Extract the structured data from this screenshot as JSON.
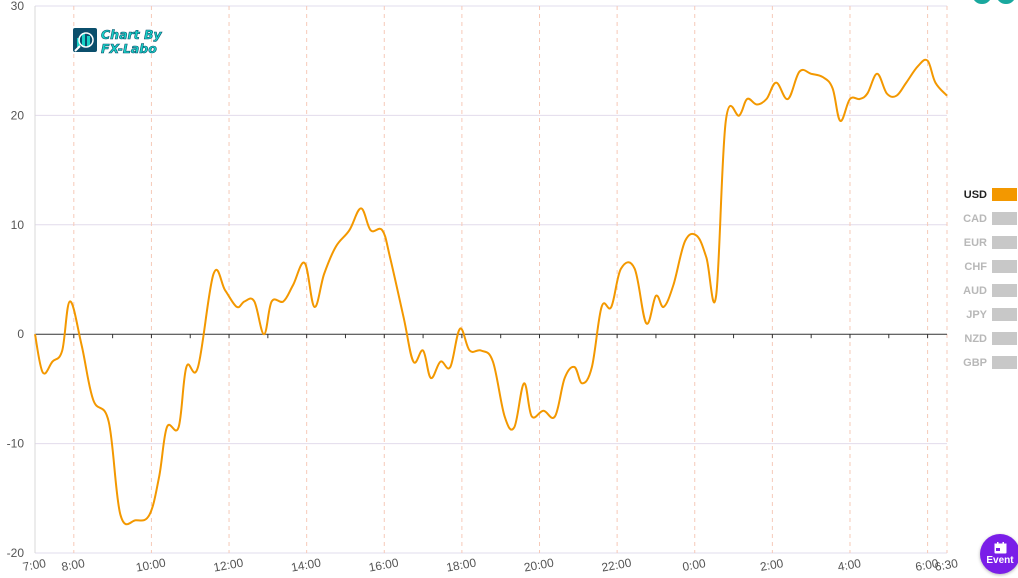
{
  "logo": {
    "line1": "Chart By",
    "line2": "FX-Labo",
    "icon": "chart-logo-icon"
  },
  "event_button": {
    "label": "Event",
    "icon": "calendar-icon",
    "color": "#7a1ee8"
  },
  "colors": {
    "series": "#f39800",
    "inactive": "#c8c8c8",
    "grid": "#e2dcec",
    "vgrid": "#f6c9b8",
    "zero_axis": "#333333"
  },
  "chart_data": {
    "type": "line",
    "title": "",
    "xlabel": "",
    "ylabel": "",
    "ylim": [
      -20,
      30
    ],
    "yticks": [
      -20,
      -10,
      0,
      10,
      20,
      30
    ],
    "xticks": [
      "7:00",
      "8:00",
      "10:00",
      "12:00",
      "14:00",
      "16:00",
      "18:00",
      "20:00",
      "22:00",
      "0:00",
      "2:00",
      "4:00",
      "6:00",
      "6:30"
    ],
    "x_hours": [
      0,
      1,
      3,
      5,
      7,
      9,
      11,
      13,
      15,
      17,
      19,
      21,
      23,
      23.5
    ],
    "grid": true,
    "legend_position": "right",
    "legend": [
      {
        "label": "USD",
        "active": true
      },
      {
        "label": "CAD",
        "active": false
      },
      {
        "label": "EUR",
        "active": false
      },
      {
        "label": "CHF",
        "active": false
      },
      {
        "label": "AUD",
        "active": false
      },
      {
        "label": "JPY",
        "active": false
      },
      {
        "label": "NZD",
        "active": false
      },
      {
        "label": "GBP",
        "active": false
      }
    ],
    "series": [
      {
        "name": "USD",
        "points": [
          [
            0.0,
            0.0
          ],
          [
            0.2,
            -3.5
          ],
          [
            0.45,
            -2.5
          ],
          [
            0.7,
            -1.5
          ],
          [
            0.9,
            3.0
          ],
          [
            1.2,
            -1.0
          ],
          [
            1.5,
            -6.0
          ],
          [
            1.9,
            -8.0
          ],
          [
            2.2,
            -16.5
          ],
          [
            2.6,
            -17.0
          ],
          [
            2.95,
            -16.5
          ],
          [
            3.2,
            -13.0
          ],
          [
            3.4,
            -8.5
          ],
          [
            3.7,
            -8.5
          ],
          [
            3.9,
            -3.0
          ],
          [
            4.2,
            -3.0
          ],
          [
            4.6,
            5.5
          ],
          [
            4.9,
            4.0
          ],
          [
            5.2,
            2.5
          ],
          [
            5.4,
            3.0
          ],
          [
            5.65,
            3.0
          ],
          [
            5.9,
            0.0
          ],
          [
            6.1,
            3.0
          ],
          [
            6.4,
            3.0
          ],
          [
            6.65,
            4.5
          ],
          [
            6.95,
            6.5
          ],
          [
            7.2,
            2.5
          ],
          [
            7.45,
            5.5
          ],
          [
            7.75,
            8.0
          ],
          [
            8.1,
            9.5
          ],
          [
            8.4,
            11.5
          ],
          [
            8.65,
            9.5
          ],
          [
            8.95,
            9.5
          ],
          [
            9.15,
            7.0
          ],
          [
            9.5,
            1.5
          ],
          [
            9.75,
            -2.5
          ],
          [
            10.0,
            -1.5
          ],
          [
            10.2,
            -4.0
          ],
          [
            10.45,
            -2.5
          ],
          [
            10.7,
            -3.0
          ],
          [
            10.95,
            0.5
          ],
          [
            11.2,
            -1.5
          ],
          [
            11.5,
            -1.5
          ],
          [
            11.8,
            -2.5
          ],
          [
            12.1,
            -7.5
          ],
          [
            12.35,
            -8.5
          ],
          [
            12.6,
            -4.5
          ],
          [
            12.8,
            -7.5
          ],
          [
            13.1,
            -7.0
          ],
          [
            13.4,
            -7.5
          ],
          [
            13.65,
            -4.0
          ],
          [
            13.9,
            -3.0
          ],
          [
            14.1,
            -4.5
          ],
          [
            14.35,
            -3.0
          ],
          [
            14.6,
            2.5
          ],
          [
            14.85,
            2.5
          ],
          [
            15.1,
            6.0
          ],
          [
            15.45,
            6.0
          ],
          [
            15.75,
            1.0
          ],
          [
            16.0,
            3.5
          ],
          [
            16.2,
            2.5
          ],
          [
            16.45,
            4.5
          ],
          [
            16.75,
            8.5
          ],
          [
            17.05,
            9.0
          ],
          [
            17.3,
            7.0
          ],
          [
            17.55,
            3.5
          ],
          [
            17.8,
            19.5
          ],
          [
            18.15,
            20.0
          ],
          [
            18.35,
            21.5
          ],
          [
            18.6,
            21.0
          ],
          [
            18.85,
            21.5
          ],
          [
            19.1,
            23.0
          ],
          [
            19.4,
            21.5
          ],
          [
            19.7,
            24.0
          ],
          [
            20.0,
            23.8
          ],
          [
            20.3,
            23.5
          ],
          [
            20.55,
            22.5
          ],
          [
            20.75,
            19.5
          ],
          [
            21.0,
            21.5
          ],
          [
            21.25,
            21.5
          ],
          [
            21.45,
            22.0
          ],
          [
            21.7,
            23.8
          ],
          [
            21.95,
            22.0
          ],
          [
            22.2,
            21.8
          ],
          [
            22.45,
            23.0
          ],
          [
            22.75,
            24.5
          ],
          [
            23.0,
            25.0
          ],
          [
            23.2,
            23.0
          ],
          [
            23.5,
            21.8
          ]
        ]
      }
    ]
  }
}
